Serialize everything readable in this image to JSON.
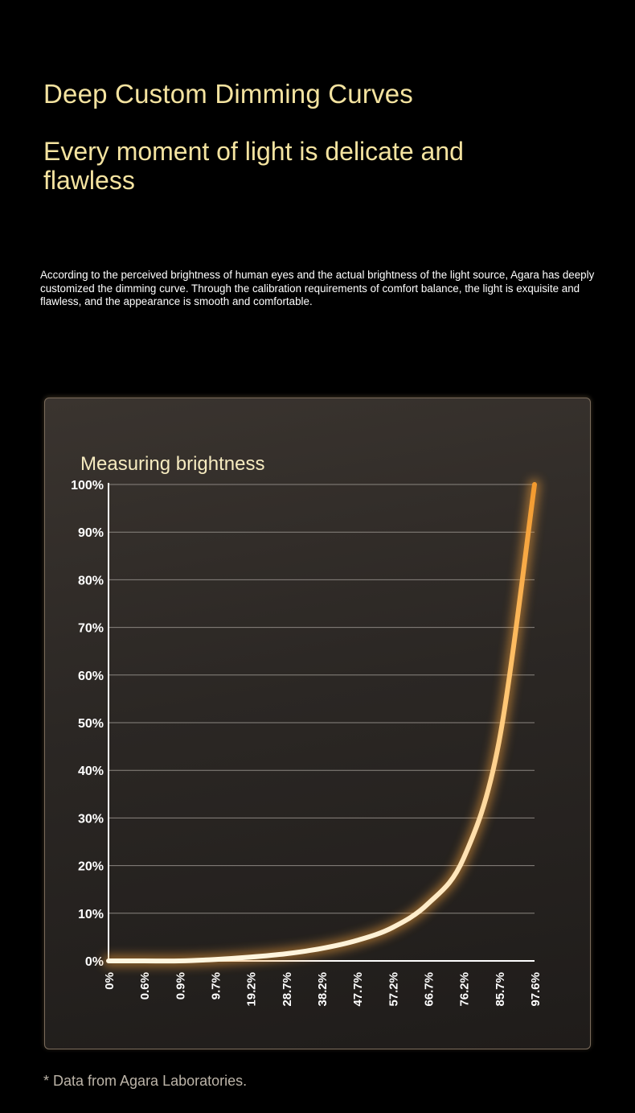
{
  "header": {
    "headline": "Deep Custom Dimming Curves",
    "subheadline": "Every moment of light is delicate and flawless",
    "body": "According to the perceived brightness of human eyes and the actual brightness of the light source, Agara has deeply customized the dimming curve. Through the calibration requirements of comfort balance, the light is exquisite and flawless, and the appearance is smooth and comfortable."
  },
  "footnote": "* Data from Agara Laboratories.",
  "chart_data": {
    "type": "line",
    "title": "Measuring brightness",
    "xlabel": "",
    "ylabel": "",
    "categories": [
      "0%",
      "0.6%",
      "0.9%",
      "9.7%",
      "19.2%",
      "28.7%",
      "38.2%",
      "47.7%",
      "57.2%",
      "66.7%",
      "76.2%",
      "85.7%",
      "97.6%"
    ],
    "yticks": [
      "0%",
      "10%",
      "20%",
      "30%",
      "40%",
      "50%",
      "60%",
      "70%",
      "80%",
      "90%",
      "100%"
    ],
    "ylim": [
      0,
      100
    ],
    "grid": true,
    "series": [
      {
        "values": [
          0,
          0,
          0,
          0.3,
          0.8,
          1.5,
          2.6,
          4.3,
          7,
          12,
          21.5,
          46,
          100
        ]
      }
    ],
    "colors": {
      "line": "#f6a23a",
      "line_core": "#ffe9b8",
      "grid": "#8a8580",
      "axis": "#ffffff",
      "tick_text": "#ffffff",
      "title_text": "#f6ebc0"
    }
  }
}
